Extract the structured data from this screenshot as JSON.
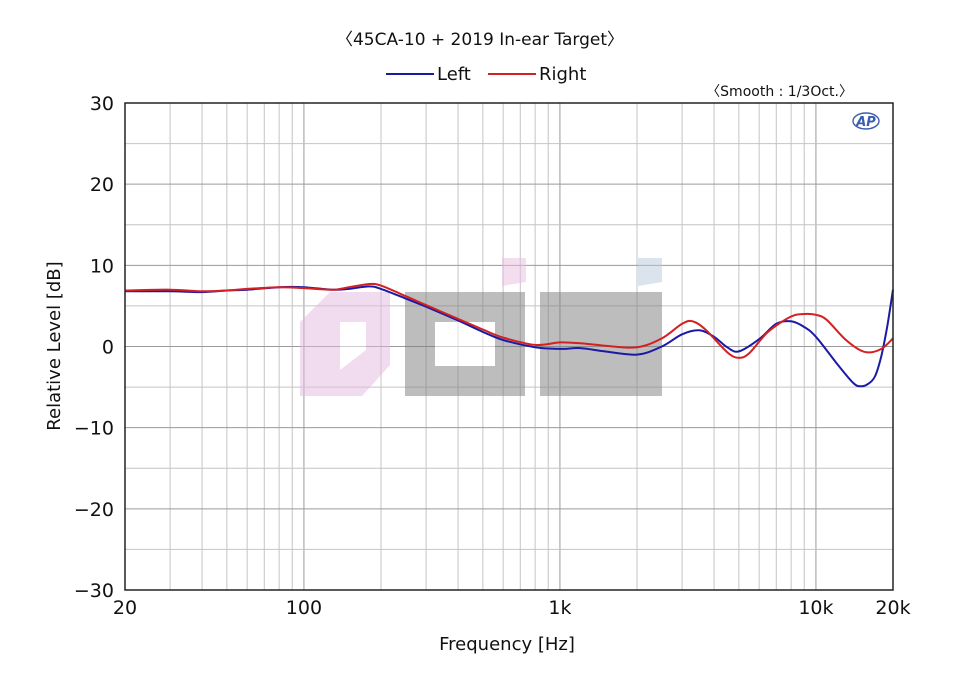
{
  "chart_data": {
    "type": "line",
    "title": "〈45CA-10 + 2019 In-ear Target〉",
    "note": "〈Smooth : 1/3Oct.〉",
    "logo": "AP",
    "xlabel": "Frequency [Hz]",
    "ylabel": "Relative Level [dB]",
    "xscale": "log",
    "xlim": [
      20,
      20000
    ],
    "ylim": [
      -30,
      30
    ],
    "xticks": [
      {
        "value": 20,
        "label": "20"
      },
      {
        "value": 100,
        "label": "100"
      },
      {
        "value": 1000,
        "label": "1k"
      },
      {
        "value": 10000,
        "label": "10k"
      },
      {
        "value": 20000,
        "label": "20k"
      }
    ],
    "yticks": [
      {
        "value": 30,
        "label": "30"
      },
      {
        "value": 20,
        "label": "20"
      },
      {
        "value": 10,
        "label": "10"
      },
      {
        "value": 0,
        "label": "0"
      },
      {
        "value": -10,
        "label": "−10"
      },
      {
        "value": -20,
        "label": "−20"
      },
      {
        "value": -30,
        "label": "−30"
      }
    ],
    "grid": true,
    "legend_position": "top",
    "series": [
      {
        "name": "Left",
        "color": "#1a1aa6",
        "points": [
          [
            20,
            6.8
          ],
          [
            30,
            6.8
          ],
          [
            40,
            6.7
          ],
          [
            50,
            6.9
          ],
          [
            60,
            7.0
          ],
          [
            80,
            7.3
          ],
          [
            100,
            7.3
          ],
          [
            130,
            7.0
          ],
          [
            150,
            7.1
          ],
          [
            180,
            7.4
          ],
          [
            200,
            7.1
          ],
          [
            250,
            5.9
          ],
          [
            300,
            4.9
          ],
          [
            400,
            3.2
          ],
          [
            500,
            1.8
          ],
          [
            600,
            0.8
          ],
          [
            800,
            -0.1
          ],
          [
            1000,
            -0.3
          ],
          [
            1200,
            -0.2
          ],
          [
            1500,
            -0.6
          ],
          [
            2000,
            -1.0
          ],
          [
            2500,
            0.0
          ],
          [
            3000,
            1.5
          ],
          [
            3500,
            2.0
          ],
          [
            4000,
            1.2
          ],
          [
            4500,
            -0.1
          ],
          [
            5000,
            -0.6
          ],
          [
            6000,
            0.9
          ],
          [
            7000,
            2.8
          ],
          [
            8000,
            3.1
          ],
          [
            9000,
            2.4
          ],
          [
            10000,
            1.2
          ],
          [
            12000,
            -2.0
          ],
          [
            14000,
            -4.5
          ],
          [
            15000,
            -4.9
          ],
          [
            16000,
            -4.6
          ],
          [
            17000,
            -3.7
          ],
          [
            18000,
            -1.2
          ],
          [
            19000,
            2.5
          ],
          [
            20000,
            7.0
          ]
        ]
      },
      {
        "name": "Right",
        "color": "#d42020",
        "points": [
          [
            20,
            6.9
          ],
          [
            30,
            7.0
          ],
          [
            40,
            6.8
          ],
          [
            50,
            6.9
          ],
          [
            60,
            7.1
          ],
          [
            80,
            7.3
          ],
          [
            100,
            7.2
          ],
          [
            130,
            7.0
          ],
          [
            150,
            7.3
          ],
          [
            180,
            7.7
          ],
          [
            200,
            7.5
          ],
          [
            250,
            6.2
          ],
          [
            300,
            5.1
          ],
          [
            400,
            3.4
          ],
          [
            500,
            2.1
          ],
          [
            600,
            1.1
          ],
          [
            800,
            0.2
          ],
          [
            1000,
            0.5
          ],
          [
            1200,
            0.4
          ],
          [
            1500,
            0.1
          ],
          [
            2000,
            -0.1
          ],
          [
            2500,
            1.0
          ],
          [
            3000,
            2.8
          ],
          [
            3300,
            3.1
          ],
          [
            3700,
            2.1
          ],
          [
            4500,
            -0.7
          ],
          [
            5000,
            -1.4
          ],
          [
            5500,
            -0.8
          ],
          [
            6500,
            1.8
          ],
          [
            8000,
            3.7
          ],
          [
            9000,
            4.0
          ],
          [
            10000,
            3.9
          ],
          [
            11000,
            3.3
          ],
          [
            13000,
            0.9
          ],
          [
            15000,
            -0.5
          ],
          [
            16500,
            -0.7
          ],
          [
            18000,
            -0.3
          ],
          [
            19000,
            0.3
          ],
          [
            20000,
            1.0
          ]
        ]
      }
    ]
  }
}
